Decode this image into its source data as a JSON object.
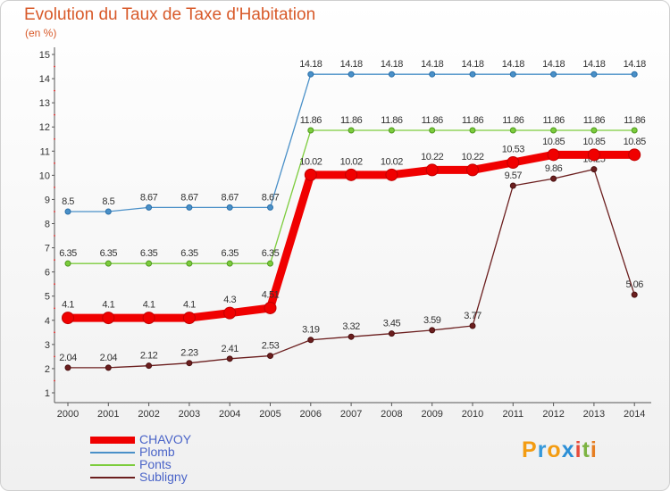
{
  "header": {
    "title": "Evolution du Taux de Taxe d'Habitation",
    "unit": "(en %)"
  },
  "logo": {
    "text": "Proxiti",
    "letters": [
      "P",
      "r",
      "o",
      "x",
      "i",
      "t",
      "i"
    ],
    "colors": [
      "#f39c12",
      "#3498db",
      "#f39c12",
      "#2c8fd6",
      "#e74c3c",
      "#7cb342",
      "#e67e22"
    ]
  },
  "chart_data": {
    "type": "line",
    "title": "Evolution du Taux de Taxe d'Habitation",
    "ylabel": "(en %)",
    "x": [
      "2000",
      "2001",
      "2002",
      "2003",
      "2004",
      "2005",
      "2006",
      "2007",
      "2008",
      "2009",
      "2010",
      "2011",
      "2012",
      "2013",
      "2014"
    ],
    "ylim": [
      1,
      15
    ],
    "yticks": [
      1,
      2,
      3,
      4,
      5,
      6,
      7,
      8,
      9,
      10,
      11,
      12,
      13,
      14,
      15
    ],
    "grid": false,
    "legend_position": "bottom-left",
    "series": [
      {
        "name": "Plomb",
        "color": "#4a90c8",
        "values": [
          8.5,
          8.5,
          8.67,
          8.67,
          8.67,
          8.67,
          14.18,
          14.18,
          14.18,
          14.18,
          14.18,
          14.18,
          14.18,
          14.18,
          14.18
        ],
        "labels": [
          "8.5",
          "8.5",
          "8.67",
          "8.67",
          "8.67",
          "8.67",
          "14.18",
          "14.18",
          "14.18",
          "14.18",
          "14.18",
          "14.18",
          "14.18",
          "14.18",
          "14.18"
        ]
      },
      {
        "name": "Ponts",
        "color": "#7ccc3c",
        "values": [
          6.35,
          6.35,
          6.35,
          6.35,
          6.35,
          6.35,
          11.86,
          11.86,
          11.86,
          11.86,
          11.86,
          11.86,
          11.86,
          11.86,
          11.86
        ],
        "labels": [
          "6.35",
          "6.35",
          "6.35",
          "6.35",
          "6.35",
          "6.35",
          "11.86",
          "11.86",
          "11.86",
          "11.86",
          "11.86",
          "11.86",
          "11.86",
          "11.86",
          "11.86"
        ]
      },
      {
        "name": "Subligny",
        "color": "#6b1e1e",
        "values": [
          2.04,
          2.04,
          2.12,
          2.23,
          2.41,
          2.53,
          3.19,
          3.32,
          3.45,
          3.59,
          3.77,
          9.57,
          9.86,
          10.25,
          5.06
        ],
        "labels": [
          "2.04",
          "2.04",
          "2.12",
          "2.23",
          "2.41",
          "2.53",
          "3.19",
          "3.32",
          "3.45",
          "3.59",
          "3.77",
          "9.57",
          "9.86",
          "10.25",
          "5.06"
        ]
      },
      {
        "name": "CHAVOY",
        "color": "#f00000",
        "values": [
          4.1,
          4.1,
          4.1,
          4.1,
          4.3,
          4.51,
          10.02,
          10.02,
          10.02,
          10.22,
          10.22,
          10.53,
          10.85,
          10.85,
          10.85
        ],
        "labels": [
          "4.1",
          "4.1",
          "4.1",
          "4.1",
          "4.3",
          "4.51",
          "10.02",
          "10.02",
          "10.02",
          "10.22",
          "10.22",
          "10.53",
          "10.85",
          "10.85",
          "10.85"
        ]
      }
    ]
  },
  "legend": {
    "items": [
      {
        "label": "CHAVOY",
        "color": "#f00000"
      },
      {
        "label": "Plomb",
        "color": "#4a90c8"
      },
      {
        "label": "Ponts",
        "color": "#7ccc3c"
      },
      {
        "label": "Subligny",
        "color": "#6b1e1e"
      }
    ]
  }
}
